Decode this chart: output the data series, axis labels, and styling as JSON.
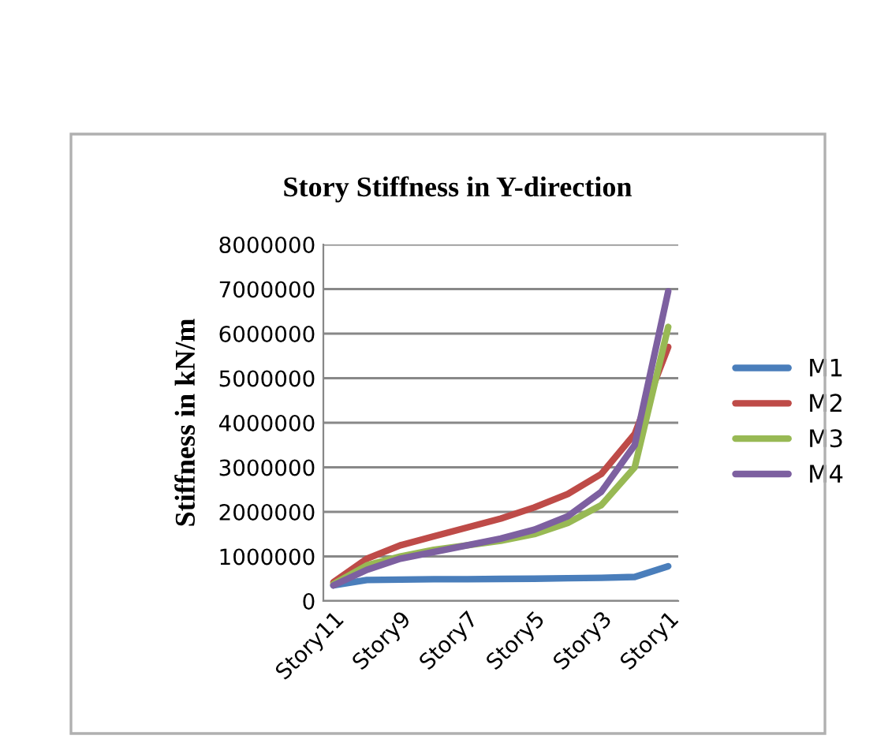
{
  "chart_data": {
    "type": "line",
    "title": "Story Stiffness in Y-direction",
    "ylabel": "Stiffness in kN/m",
    "categories": [
      "Story11",
      null,
      "Story9",
      null,
      "Story7",
      null,
      "Story5",
      null,
      "Story3",
      null,
      "Story1"
    ],
    "series": [
      {
        "name": "M1",
        "color": "#4a7ebb",
        "values": [
          350000,
          470000,
          480000,
          490000,
          490000,
          495000,
          500000,
          510000,
          520000,
          540000,
          780000
        ]
      },
      {
        "name": "M2",
        "color": "#be4b48",
        "values": [
          420000,
          950000,
          1250000,
          1450000,
          1650000,
          1850000,
          2100000,
          2400000,
          2850000,
          3750000,
          5700000
        ]
      },
      {
        "name": "M3",
        "color": "#98b954",
        "values": [
          380000,
          800000,
          1000000,
          1150000,
          1250000,
          1350000,
          1500000,
          1750000,
          2150000,
          3000000,
          6150000
        ]
      },
      {
        "name": "M4",
        "color": "#7d60a0",
        "values": [
          350000,
          700000,
          950000,
          1100000,
          1250000,
          1400000,
          1600000,
          1900000,
          2450000,
          3500000,
          6950000
        ]
      }
    ],
    "ylim": [
      0,
      8000000
    ],
    "yticks": [
      0,
      1000000,
      2000000,
      3000000,
      4000000,
      5000000,
      6000000,
      7000000,
      8000000
    ],
    "grid": "y",
    "legend": "right",
    "marker": "none",
    "line_style": "solid"
  }
}
